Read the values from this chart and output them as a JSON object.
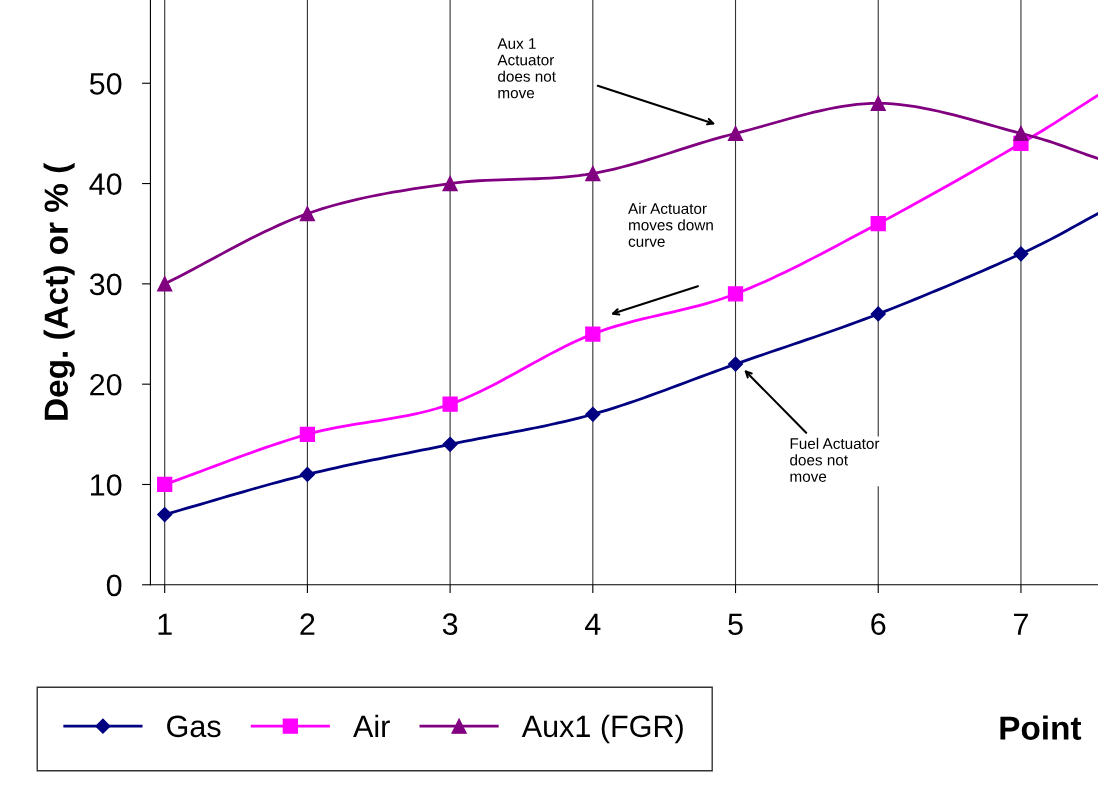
{
  "chart_data": {
    "type": "line",
    "ylabel": "Deg. (Act) or % (",
    "xlabel": "Point",
    "xlim": [
      0.9,
      7.54
    ],
    "xticks": [
      1,
      2,
      3,
      4,
      5,
      6,
      7
    ],
    "ylim": [
      0,
      58.3
    ],
    "yticks": [
      0,
      10,
      20,
      30,
      40,
      50
    ],
    "grid": "x",
    "legend": "bottom left",
    "series": [
      {
        "name": "Gas",
        "color": "#000080",
        "marker": "diamond",
        "x": [
          1,
          2,
          3,
          4,
          5,
          6,
          7,
          7.54
        ],
        "values": [
          7,
          11,
          14,
          17,
          22,
          27,
          33,
          37
        ]
      },
      {
        "name": "Air",
        "color": "#ff00ff",
        "marker": "square",
        "x": [
          1,
          2,
          3,
          4,
          5,
          6,
          7,
          7.54
        ],
        "values": [
          10,
          15,
          18,
          25,
          29,
          36,
          44,
          48.8
        ]
      },
      {
        "name": "Aux1 (FGR)",
        "color": "#800080",
        "marker": "triangle",
        "x": [
          1,
          2,
          3,
          4,
          5,
          6,
          7,
          7.54
        ],
        "values": [
          30,
          37,
          40,
          41,
          45,
          48,
          45,
          42.5
        ]
      }
    ],
    "annotations": [
      "Aux 1\nActuator\ndoes not\nmove",
      "Air Actuator\nmoves down\ncurve",
      "Fuel Actuator\ndoes not\nmove"
    ]
  }
}
